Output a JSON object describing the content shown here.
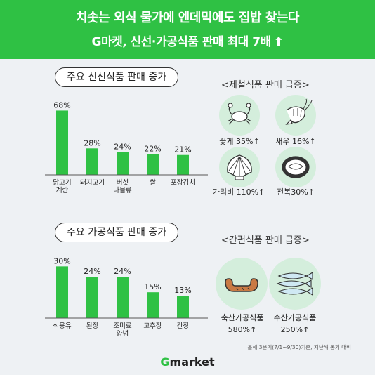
{
  "header": {
    "title": "치솟는 외식 물가에 엔데믹에도 집밥 찾는다",
    "subtitle": "G마켓, 신선·가공식품 판매 최대 7배",
    "arrow": "⬆"
  },
  "section1": {
    "pill": "주요 신선식품 판매 증가",
    "right_title": "<제철식품 판매 급증>",
    "items": [
      {
        "icon": "crab-icon",
        "label": "꽃게 35%↑"
      },
      {
        "icon": "shrimp-icon",
        "label": "새우 16%↑"
      },
      {
        "icon": "clam-icon",
        "label": "가리비 110%↑"
      },
      {
        "icon": "abalone-icon",
        "label": "전복30%↑"
      }
    ]
  },
  "section2": {
    "pill": "주요 가공식품 판매 증가",
    "right_title": "<간편식품 판매 급증>",
    "items": [
      {
        "icon": "sausage-icon",
        "label1": "축산가공식품",
        "label2": "580%↑"
      },
      {
        "icon": "fish-icon",
        "label1": "수산가공식품",
        "label2": "250%↑"
      }
    ]
  },
  "chart_data": [
    {
      "type": "bar",
      "categories": [
        "닭고기\n계란",
        "돼지고기",
        "버섯\n나물류",
        "쌀",
        "포장김치"
      ],
      "values": [
        68,
        28,
        24,
        22,
        21
      ],
      "value_labels": [
        "68%",
        "28%",
        "24%",
        "22%",
        "21%"
      ],
      "title": "주요 신선식품 판매 증가",
      "ylim": [
        0,
        75
      ],
      "color": "#2fc144",
      "grid": false
    },
    {
      "type": "bar",
      "categories": [
        "식용유",
        "된장",
        "조미료\n양념",
        "고추장",
        "간장"
      ],
      "values": [
        30,
        24,
        24,
        15,
        13
      ],
      "value_labels": [
        "30%",
        "24%",
        "24%",
        "15%",
        "13%"
      ],
      "title": "주요 가공식품 판매 증가",
      "ylim": [
        0,
        33
      ],
      "color": "#2fc144",
      "grid": false
    }
  ],
  "footnote": "올해 3분기(7/1~9/30)기준, 지난해 동기 대비",
  "logo": {
    "g": "G",
    "rest": "market"
  }
}
